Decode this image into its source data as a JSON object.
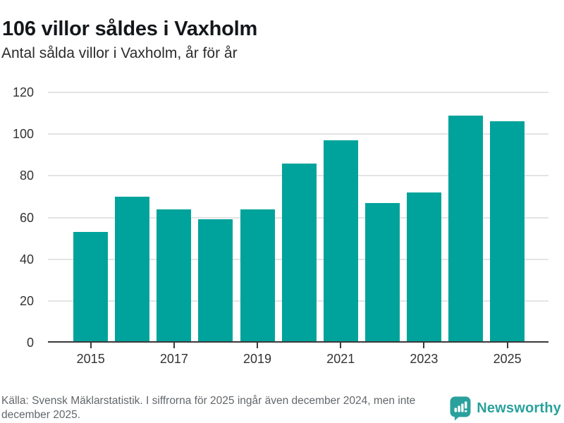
{
  "chart_data": {
    "type": "bar",
    "title": "106 villor såldes i Vaxholm",
    "subtitle": "Antal sålda villor i Vaxholm, år för år",
    "categories": [
      "2015",
      "2016",
      "2017",
      "2018",
      "2019",
      "2020",
      "2021",
      "2022",
      "2023",
      "2024",
      "2025"
    ],
    "values": [
      53,
      70,
      64,
      59,
      64,
      86,
      97,
      67,
      72,
      109,
      106
    ],
    "xlabel": "",
    "ylabel": "",
    "ylim": [
      0,
      120
    ],
    "yticks": [
      0,
      20,
      40,
      60,
      80,
      100,
      120
    ],
    "xticks": [
      "2015",
      "2017",
      "2019",
      "2021",
      "2023",
      "2025"
    ],
    "grid": "horizontal-light-gray",
    "legend": "none",
    "bar_color": "#00a39b",
    "axis_color": "#3a3a3a",
    "label_color": "#333333"
  },
  "footer": {
    "source": "Källa: Svensk Mäklarstatistik. I siffrorna för 2025 ingår även december 2024, men inte december 2025."
  },
  "branding": {
    "logo_text": "Newsworthy",
    "logo_icon": "newsworthy-speech-bubble-bar-chart-icon",
    "logo_color": "#2aa19d"
  }
}
